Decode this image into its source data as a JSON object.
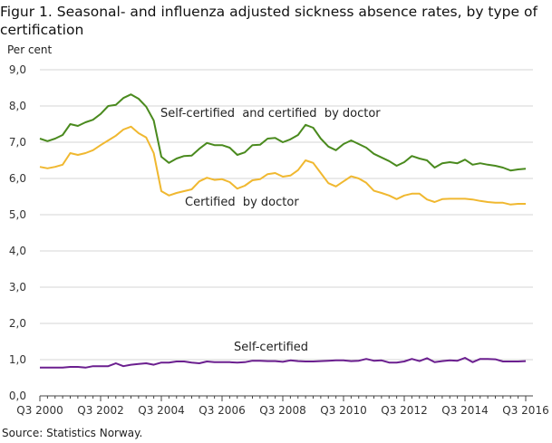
{
  "title": "Figur 1. Seasonal- and influenza adjusted sickness absence rates, by type of certification",
  "source": "Source: Statistics Norway.",
  "chart_data": {
    "type": "line",
    "ylabel": "Per cent",
    "xlabel": "",
    "ylim": [
      0,
      9
    ],
    "yticks": [
      "0,0",
      "1,0",
      "2,0",
      "3,0",
      "4,0",
      "5,0",
      "6,0",
      "7,0",
      "8,0",
      "9,0"
    ],
    "xticks": [
      "Q3 2000",
      "Q3 2002",
      "Q3 2004",
      "Q3 2006",
      "Q3 2008",
      "Q3 2010",
      "Q3 2012",
      "Q3 2014",
      "Q3 2016"
    ],
    "grid": true,
    "legend": "inline labels",
    "x": [
      "Q3 2000",
      "Q4 2000",
      "Q1 2001",
      "Q2 2001",
      "Q3 2001",
      "Q4 2001",
      "Q1 2002",
      "Q2 2002",
      "Q3 2002",
      "Q4 2002",
      "Q1 2003",
      "Q2 2003",
      "Q3 2003",
      "Q4 2003",
      "Q1 2004",
      "Q2 2004",
      "Q3 2004",
      "Q4 2004",
      "Q1 2005",
      "Q2 2005",
      "Q3 2005",
      "Q4 2005",
      "Q1 2006",
      "Q2 2006",
      "Q3 2006",
      "Q4 2006",
      "Q1 2007",
      "Q2 2007",
      "Q3 2007",
      "Q4 2007",
      "Q1 2008",
      "Q2 2008",
      "Q3 2008",
      "Q4 2008",
      "Q1 2009",
      "Q2 2009",
      "Q3 2009",
      "Q4 2009",
      "Q1 2010",
      "Q2 2010",
      "Q3 2010",
      "Q4 2010",
      "Q1 2011",
      "Q2 2011",
      "Q3 2011",
      "Q4 2011",
      "Q1 2012",
      "Q2 2012",
      "Q3 2012",
      "Q4 2012",
      "Q1 2013",
      "Q2 2013",
      "Q3 2013",
      "Q4 2013",
      "Q1 2014",
      "Q2 2014",
      "Q3 2014",
      "Q4 2014",
      "Q1 2015",
      "Q2 2015",
      "Q3 2015",
      "Q4 2015",
      "Q1 2016",
      "Q2 2016",
      "Q3 2016"
    ],
    "series": [
      {
        "name": "Self-certified  and certified  by doctor",
        "color": "#4a8a1e",
        "values": [
          7.1,
          7.03,
          7.1,
          7.2,
          7.5,
          7.45,
          7.55,
          7.62,
          7.78,
          8.0,
          8.03,
          8.22,
          8.32,
          8.2,
          7.98,
          7.6,
          6.6,
          6.43,
          6.55,
          6.62,
          6.63,
          6.82,
          6.98,
          6.92,
          6.92,
          6.85,
          6.65,
          6.72,
          6.92,
          6.93,
          7.1,
          7.12,
          7.0,
          7.08,
          7.2,
          7.48,
          7.4,
          7.1,
          6.88,
          6.78,
          6.95,
          7.05,
          6.95,
          6.85,
          6.68,
          6.58,
          6.48,
          6.35,
          6.45,
          6.62,
          6.55,
          6.5,
          6.3,
          6.42,
          6.45,
          6.42,
          6.52,
          6.38,
          6.42,
          6.38,
          6.35,
          6.3,
          6.22,
          6.25,
          6.27
        ]
      },
      {
        "name": "Certified  by doctor",
        "color": "#f0b830",
        "values": [
          6.32,
          6.28,
          6.32,
          6.38,
          6.7,
          6.65,
          6.7,
          6.78,
          6.92,
          7.05,
          7.18,
          7.35,
          7.43,
          7.25,
          7.13,
          6.7,
          5.65,
          5.53,
          5.6,
          5.65,
          5.7,
          5.92,
          6.02,
          5.96,
          5.98,
          5.9,
          5.72,
          5.8,
          5.95,
          5.98,
          6.12,
          6.15,
          6.05,
          6.08,
          6.23,
          6.5,
          6.43,
          6.15,
          5.87,
          5.78,
          5.92,
          6.06,
          6.0,
          5.88,
          5.66,
          5.6,
          5.53,
          5.43,
          5.53,
          5.58,
          5.58,
          5.42,
          5.35,
          5.43,
          5.44,
          5.44,
          5.44,
          5.42,
          5.38,
          5.35,
          5.33,
          5.33,
          5.28,
          5.3,
          5.3
        ]
      },
      {
        "name": "Self-certified",
        "color": "#6b1f8f",
        "values": [
          0.78,
          0.78,
          0.78,
          0.78,
          0.8,
          0.8,
          0.78,
          0.82,
          0.82,
          0.82,
          0.9,
          0.82,
          0.86,
          0.88,
          0.9,
          0.86,
          0.92,
          0.92,
          0.95,
          0.95,
          0.92,
          0.9,
          0.95,
          0.93,
          0.93,
          0.93,
          0.92,
          0.93,
          0.97,
          0.97,
          0.96,
          0.96,
          0.94,
          0.98,
          0.96,
          0.95,
          0.95,
          0.96,
          0.97,
          0.98,
          0.98,
          0.96,
          0.97,
          1.02,
          0.97,
          0.98,
          0.92,
          0.92,
          0.95,
          1.02,
          0.96,
          1.04,
          0.93,
          0.96,
          0.98,
          0.97,
          1.05,
          0.93,
          1.02,
          1.02,
          1.01,
          0.95,
          0.95,
          0.95,
          0.96
        ]
      }
    ]
  }
}
